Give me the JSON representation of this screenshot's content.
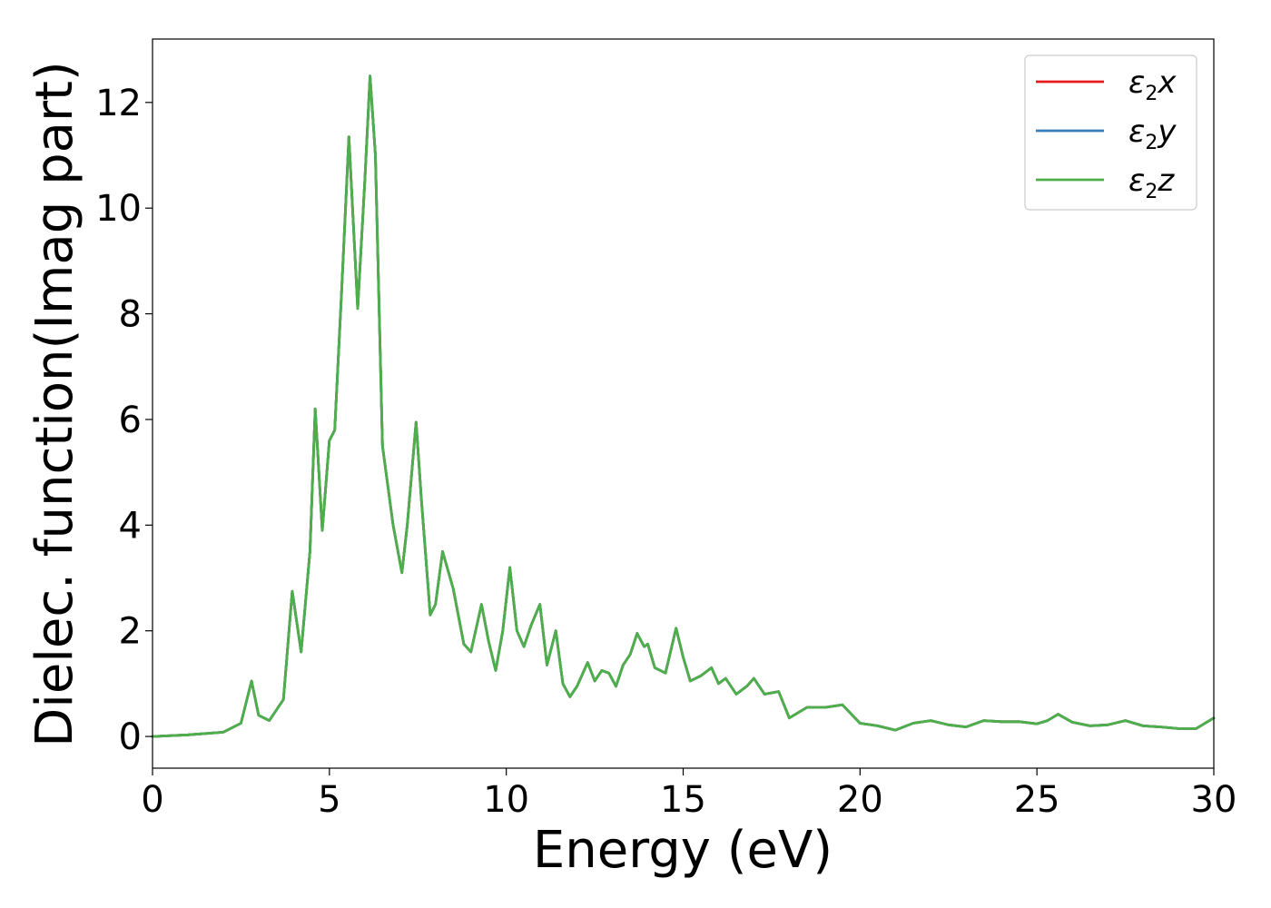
{
  "chart_data": {
    "type": "line",
    "title": "",
    "xlabel": "Energy (eV)",
    "ylabel": "Dielec. function(Imag part)",
    "xlim": [
      0,
      30
    ],
    "ylim": [
      -0.6,
      13.2
    ],
    "xticks": [
      0,
      5,
      10,
      15,
      20,
      25,
      30
    ],
    "yticks": [
      0,
      2,
      4,
      6,
      8,
      10,
      12
    ],
    "grid": false,
    "legend_position": "top-right",
    "legend": [
      {
        "symbol": "ε",
        "sub": "2",
        "axis": "x",
        "color": "#e41a1c"
      },
      {
        "symbol": "ε",
        "sub": "2",
        "axis": "y",
        "color": "#377eb8"
      },
      {
        "symbol": "ε",
        "sub": "2",
        "axis": "z",
        "color": "#4daf4a"
      }
    ],
    "x": [
      0,
      1,
      2,
      2.5,
      2.8,
      3.0,
      3.3,
      3.7,
      3.95,
      4.2,
      4.45,
      4.6,
      4.8,
      5.0,
      5.15,
      5.35,
      5.55,
      5.8,
      6.0,
      6.15,
      6.3,
      6.5,
      6.8,
      7.05,
      7.2,
      7.45,
      7.6,
      7.85,
      8.0,
      8.2,
      8.5,
      8.8,
      9.0,
      9.3,
      9.5,
      9.7,
      9.9,
      10.1,
      10.3,
      10.5,
      10.7,
      10.95,
      11.15,
      11.4,
      11.6,
      11.8,
      12.0,
      12.3,
      12.5,
      12.7,
      12.9,
      13.1,
      13.3,
      13.5,
      13.7,
      13.9,
      14.0,
      14.2,
      14.5,
      14.8,
      15.0,
      15.2,
      15.5,
      15.8,
      16.0,
      16.2,
      16.5,
      16.8,
      17.0,
      17.3,
      17.7,
      18.0,
      18.5,
      19.0,
      19.5,
      20.0,
      20.5,
      21.0,
      21.5,
      22.0,
      22.5,
      23.0,
      23.5,
      24.0,
      24.5,
      25.0,
      25.3,
      25.6,
      26.0,
      26.5,
      27.0,
      27.5,
      28.0,
      28.5,
      29.0,
      29.5,
      30.0
    ],
    "series": [
      {
        "name": "ε2x",
        "color": "#e41a1c",
        "values": [
          0.0,
          0.03,
          0.08,
          0.25,
          1.05,
          0.4,
          0.3,
          0.7,
          2.75,
          1.6,
          3.5,
          6.2,
          3.9,
          5.6,
          5.8,
          8.5,
          11.35,
          8.1,
          10.5,
          12.5,
          11.0,
          5.5,
          4.0,
          3.1,
          4.0,
          5.95,
          4.5,
          2.3,
          2.5,
          3.5,
          2.8,
          1.75,
          1.6,
          2.5,
          1.8,
          1.25,
          2.0,
          3.2,
          2.0,
          1.7,
          2.1,
          2.5,
          1.35,
          2.0,
          1.0,
          0.75,
          0.95,
          1.4,
          1.05,
          1.25,
          1.2,
          0.95,
          1.35,
          1.55,
          1.95,
          1.7,
          1.75,
          1.3,
          1.2,
          2.05,
          1.5,
          1.05,
          1.15,
          1.3,
          1.0,
          1.1,
          0.8,
          0.95,
          1.1,
          0.8,
          0.85,
          0.35,
          0.55,
          0.55,
          0.6,
          0.25,
          0.2,
          0.12,
          0.25,
          0.3,
          0.22,
          0.18,
          0.3,
          0.28,
          0.28,
          0.24,
          0.3,
          0.42,
          0.27,
          0.2,
          0.22,
          0.3,
          0.2,
          0.18,
          0.15,
          0.15,
          0.35
        ]
      },
      {
        "name": "ε2y",
        "color": "#377eb8",
        "values": [
          0.0,
          0.03,
          0.08,
          0.25,
          1.05,
          0.4,
          0.3,
          0.7,
          2.75,
          1.6,
          3.5,
          6.2,
          3.9,
          5.6,
          5.8,
          8.5,
          11.35,
          8.1,
          10.5,
          12.5,
          11.0,
          5.5,
          4.0,
          3.1,
          4.0,
          5.95,
          4.5,
          2.3,
          2.5,
          3.5,
          2.8,
          1.75,
          1.6,
          2.5,
          1.8,
          1.25,
          2.0,
          3.2,
          2.0,
          1.7,
          2.1,
          2.5,
          1.35,
          2.0,
          1.0,
          0.75,
          0.95,
          1.4,
          1.05,
          1.25,
          1.2,
          0.95,
          1.35,
          1.55,
          1.95,
          1.7,
          1.75,
          1.3,
          1.2,
          2.05,
          1.5,
          1.05,
          1.15,
          1.3,
          1.0,
          1.1,
          0.8,
          0.95,
          1.1,
          0.8,
          0.85,
          0.35,
          0.55,
          0.55,
          0.6,
          0.25,
          0.2,
          0.12,
          0.25,
          0.3,
          0.22,
          0.18,
          0.3,
          0.28,
          0.28,
          0.24,
          0.3,
          0.42,
          0.27,
          0.2,
          0.22,
          0.3,
          0.2,
          0.18,
          0.15,
          0.15,
          0.35
        ]
      },
      {
        "name": "ε2z",
        "color": "#4daf4a",
        "values": [
          0.0,
          0.03,
          0.08,
          0.25,
          1.05,
          0.4,
          0.3,
          0.7,
          2.75,
          1.6,
          3.5,
          6.2,
          3.9,
          5.6,
          5.8,
          8.5,
          11.35,
          8.1,
          10.5,
          12.5,
          11.0,
          5.5,
          4.0,
          3.1,
          4.0,
          5.95,
          4.5,
          2.3,
          2.5,
          3.5,
          2.8,
          1.75,
          1.6,
          2.5,
          1.8,
          1.25,
          2.0,
          3.2,
          2.0,
          1.7,
          2.1,
          2.5,
          1.35,
          2.0,
          1.0,
          0.75,
          0.95,
          1.4,
          1.05,
          1.25,
          1.2,
          0.95,
          1.35,
          1.55,
          1.95,
          1.7,
          1.75,
          1.3,
          1.2,
          2.05,
          1.5,
          1.05,
          1.15,
          1.3,
          1.0,
          1.1,
          0.8,
          0.95,
          1.1,
          0.8,
          0.85,
          0.35,
          0.55,
          0.55,
          0.6,
          0.25,
          0.2,
          0.12,
          0.25,
          0.3,
          0.22,
          0.18,
          0.3,
          0.28,
          0.28,
          0.24,
          0.3,
          0.42,
          0.27,
          0.2,
          0.22,
          0.3,
          0.2,
          0.18,
          0.15,
          0.15,
          0.35
        ]
      }
    ]
  }
}
